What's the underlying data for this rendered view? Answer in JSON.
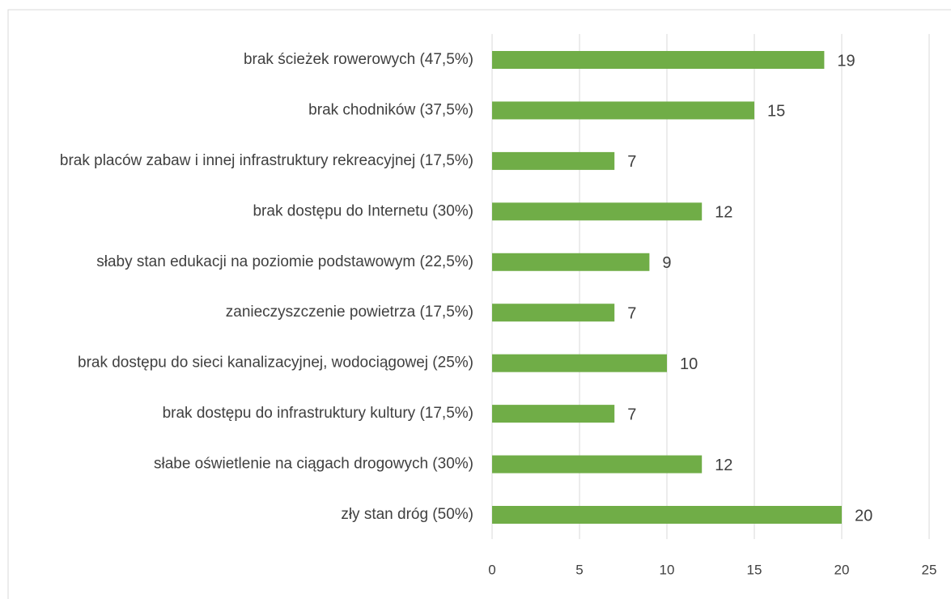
{
  "chart_data": {
    "type": "bar",
    "orientation": "horizontal",
    "categories": [
      "brak ścieżek rowerowych (47,5%)",
      "brak chodników (37,5%)",
      "brak placów zabaw i innej infrastruktury rekreacyjnej (17,5%)",
      "brak dostępu do Internetu (30%)",
      "słaby stan edukacji na poziomie podstawowym (22,5%)",
      "zanieczyszczenie powietrza (17,5%)",
      "brak dostępu do sieci kanalizacyjnej, wodociągowej (25%)",
      "brak dostępu do infrastruktury kultury (17,5%)",
      "słabe oświetlenie na ciągach drogowych (30%)",
      "zły stan dróg (50%)"
    ],
    "values": [
      19,
      15,
      7,
      12,
      9,
      7,
      10,
      7,
      12,
      20
    ],
    "color": "#70ad47",
    "xlim": [
      0,
      25
    ],
    "xticks": [
      0,
      5,
      10,
      15,
      20,
      25
    ],
    "grid": true
  }
}
